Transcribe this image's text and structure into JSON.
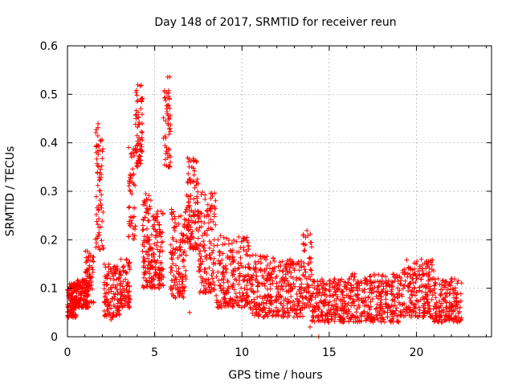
{
  "chart_data": {
    "type": "scatter",
    "title": "Day 148 of 2017, SRMTID for receiver reun",
    "xlabel": "GPS time / hours",
    "ylabel": "SRMTID / TECUs",
    "xlim": [
      0,
      24.3
    ],
    "ylim": [
      0,
      0.6
    ],
    "x_ticks": [
      0,
      5,
      10,
      15,
      20
    ],
    "y_ticks": [
      0,
      0.1,
      0.2,
      0.3,
      0.4,
      0.5,
      0.6
    ],
    "x_tick_labels": [
      "0",
      "5",
      "10",
      "15",
      "20"
    ],
    "y_tick_labels": [
      "0",
      "0.1",
      "0.2",
      "0.3",
      "0.4",
      "0.5",
      "0.6"
    ],
    "grid": true,
    "marker": "+",
    "series_color": "#ff0000",
    "points_generated_from_envelope": true,
    "envelope": [
      {
        "x": [
          0.0,
          0.5
        ],
        "y": [
          0.04,
          0.11
        ],
        "n": 120
      },
      {
        "x": [
          0.5,
          1.2
        ],
        "y": [
          0.06,
          0.12
        ],
        "n": 120
      },
      {
        "x": [
          1.0,
          1.5
        ],
        "y": [
          0.07,
          0.18
        ],
        "n": 60
      },
      {
        "x": [
          1.6,
          2.1
        ],
        "y": [
          0.18,
          0.44
        ],
        "n": 70
      },
      {
        "x": [
          2.1,
          3.0
        ],
        "y": [
          0.04,
          0.15
        ],
        "n": 110
      },
      {
        "x": [
          3.0,
          3.6
        ],
        "y": [
          0.06,
          0.16
        ],
        "n": 80
      },
      {
        "x": [
          3.5,
          3.9
        ],
        "y": [
          0.2,
          0.4
        ],
        "n": 50
      },
      {
        "x": [
          3.9,
          4.3
        ],
        "y": [
          0.35,
          0.52
        ],
        "n": 70
      },
      {
        "x": [
          4.3,
          4.8
        ],
        "y": [
          0.1,
          0.3
        ],
        "n": 90
      },
      {
        "x": [
          4.8,
          5.5
        ],
        "y": [
          0.1,
          0.26
        ],
        "n": 110
      },
      {
        "x": [
          5.5,
          5.9
        ],
        "y": [
          0.35,
          0.55
        ],
        "n": 55
      },
      {
        "x": [
          5.9,
          6.8
        ],
        "y": [
          0.08,
          0.27
        ],
        "n": 130
      },
      {
        "x": [
          6.8,
          7.5
        ],
        "y": [
          0.18,
          0.37
        ],
        "n": 110
      },
      {
        "x": [
          7.5,
          8.5
        ],
        "y": [
          0.09,
          0.3
        ],
        "n": 130
      },
      {
        "x": [
          8.5,
          10.5
        ],
        "y": [
          0.06,
          0.21
        ],
        "n": 220
      },
      {
        "x": [
          10.5,
          12.0
        ],
        "y": [
          0.04,
          0.17
        ],
        "n": 170
      },
      {
        "x": [
          12.0,
          13.5
        ],
        "y": [
          0.04,
          0.16
        ],
        "n": 160
      },
      {
        "x": [
          13.5,
          14.0
        ],
        "y": [
          0.06,
          0.22
        ],
        "n": 60
      },
      {
        "x": [
          14.0,
          16.0
        ],
        "y": [
          0.03,
          0.12
        ],
        "n": 220
      },
      {
        "x": [
          16.0,
          19.0
        ],
        "y": [
          0.03,
          0.13
        ],
        "n": 300
      },
      {
        "x": [
          19.0,
          21.0
        ],
        "y": [
          0.04,
          0.16
        ],
        "n": 220
      },
      {
        "x": [
          21.0,
          22.6
        ],
        "y": [
          0.03,
          0.12
        ],
        "n": 170
      }
    ],
    "outliers": [
      {
        "x": 13.9,
        "y": 0.02
      },
      {
        "x": 14.4,
        "y": 0.0
      },
      {
        "x": 2.5,
        "y": 0.035
      },
      {
        "x": 7.0,
        "y": 0.05
      }
    ]
  }
}
